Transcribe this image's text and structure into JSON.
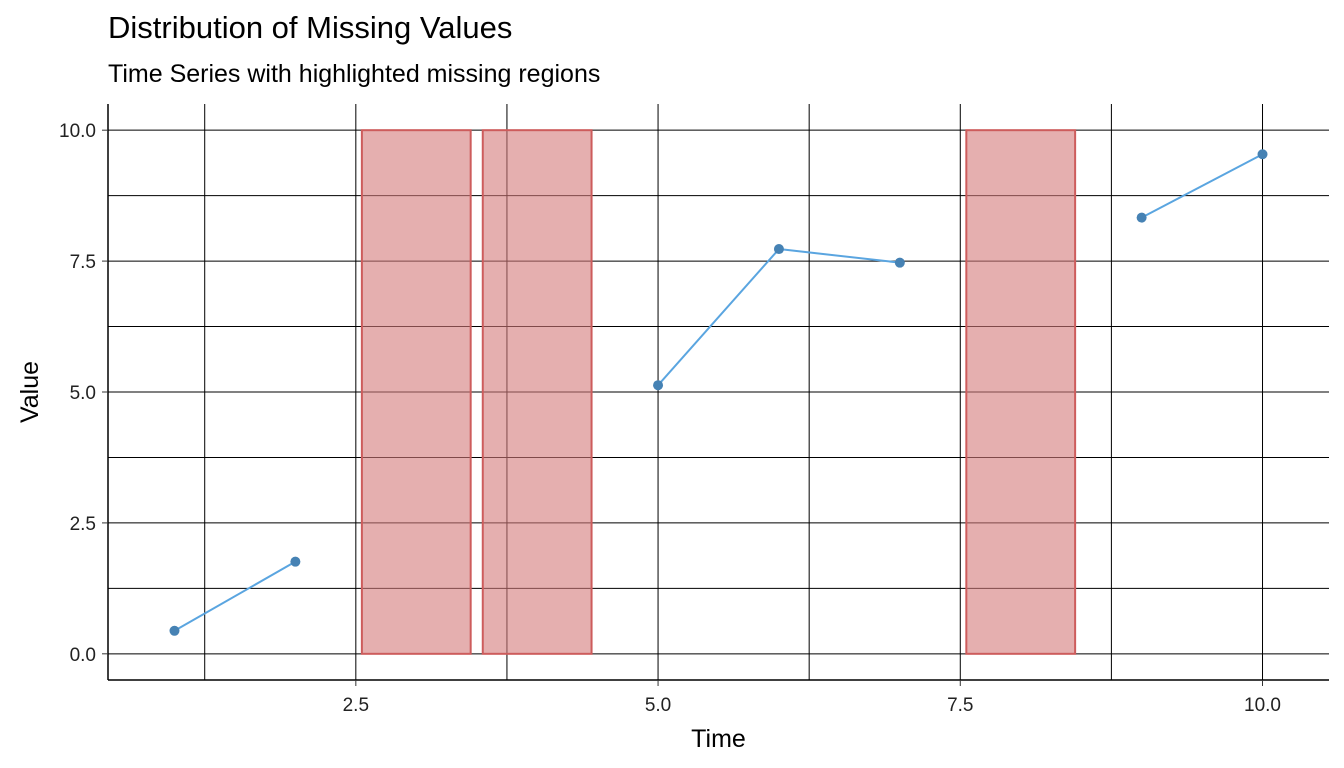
{
  "chart_data": {
    "type": "line",
    "title": "Distribution of Missing Values",
    "subtitle": "Time Series with highlighted missing regions",
    "xlabel": "Time",
    "ylabel": "Value",
    "xlim": [
      0.45,
      10.55
    ],
    "ylim": [
      -0.5,
      10.5
    ],
    "x_ticks": [
      2.5,
      5.0,
      7.5,
      10.0
    ],
    "x_tick_labels": [
      "2.5",
      "5.0",
      "7.5",
      "10.0"
    ],
    "y_ticks": [
      0.0,
      2.5,
      5.0,
      7.5,
      10.0
    ],
    "y_tick_labels": [
      "0.0",
      "2.5",
      "5.0",
      "7.5",
      "10.0"
    ],
    "x_minor_grid": [
      1.25,
      3.75,
      6.25,
      8.75
    ],
    "y_minor_grid": [
      1.25,
      3.75,
      6.25,
      8.75
    ],
    "grid": true,
    "series": [
      {
        "x": [
          1,
          2,
          3,
          4,
          5,
          6,
          7,
          8,
          9,
          10
        ],
        "values": [
          0.44,
          1.76,
          null,
          null,
          5.13,
          7.73,
          7.47,
          null,
          8.33,
          9.54
        ]
      }
    ],
    "missing_regions": [
      {
        "xmin": 2.55,
        "xmax": 3.45,
        "ymin": 0,
        "ymax": 10
      },
      {
        "xmin": 3.55,
        "xmax": 4.45,
        "ymin": 0,
        "ymax": 10
      },
      {
        "xmin": 7.55,
        "xmax": 8.45,
        "ymin": 0,
        "ymax": 10
      }
    ],
    "colors": {
      "line": "#5aa5e0",
      "point": "#4682b4",
      "region_fill": "#d47a7a",
      "region_stroke": "#cd5c5c",
      "grid": "#000000"
    }
  }
}
